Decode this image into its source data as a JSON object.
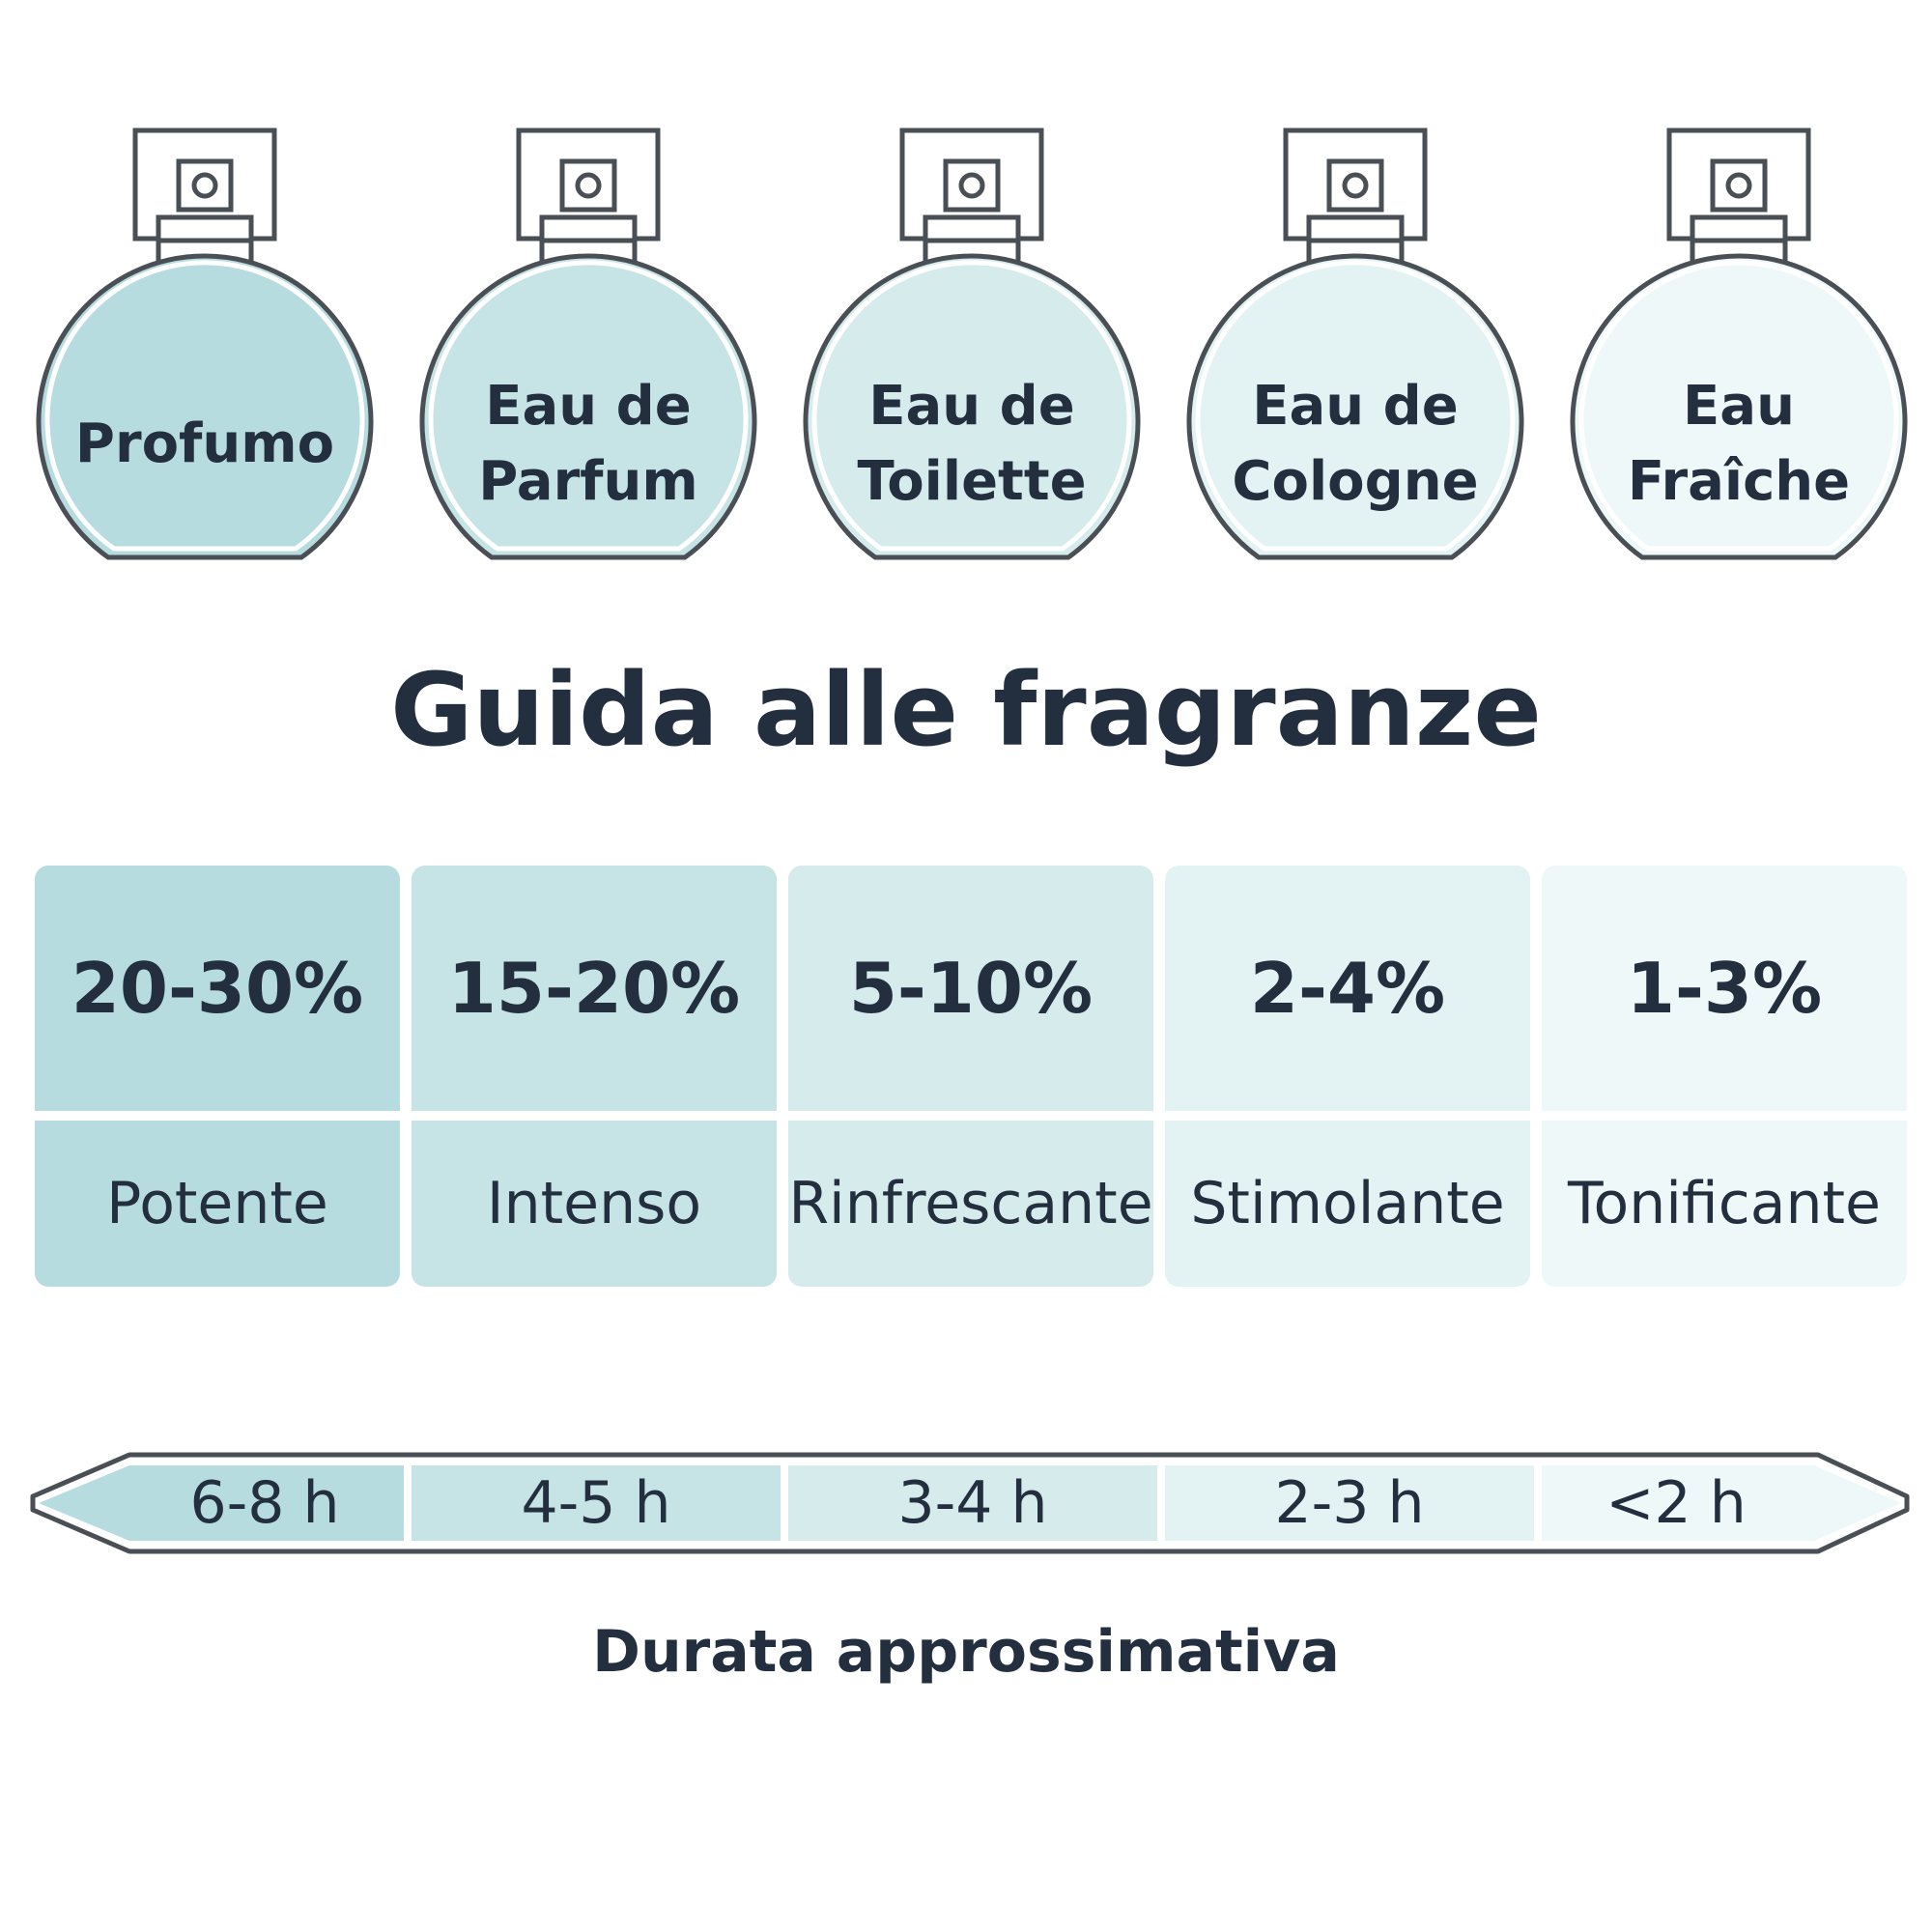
{
  "title": "Guida alle fragranze",
  "subtitle": "Durata approssimativa",
  "colors": {
    "outline": "#4a4f55",
    "text": "#232f3e",
    "shades": [
      "#b7dcdf",
      "#c6e4e6",
      "#d5ebec",
      "#e3f2f3",
      "#eff8f9"
    ]
  },
  "bottles": [
    {
      "label": "Profumo",
      "icon": "perfume-bottle-icon"
    },
    {
      "label": "Eau de\nParfum",
      "icon": "perfume-bottle-icon"
    },
    {
      "label": "Eau de\nToilette",
      "icon": "perfume-bottle-icon"
    },
    {
      "label": "Eau de\nCologne",
      "icon": "perfume-bottle-icon"
    },
    {
      "label": "Eau\nFraîche",
      "icon": "perfume-bottle-icon"
    }
  ],
  "concentrations": [
    {
      "percent": "20-30%",
      "character": "Potente"
    },
    {
      "percent": "15-20%",
      "character": "Intenso"
    },
    {
      "percent": "5-10%",
      "character": "Rinfrescante"
    },
    {
      "percent": "2-4%",
      "character": "Stimolante"
    },
    {
      "percent": "1-3%",
      "character": "Tonificante"
    }
  ],
  "durations": [
    "6-8 h",
    "4-5 h",
    "3-4 h",
    "2-3 h",
    "<2 h"
  ]
}
